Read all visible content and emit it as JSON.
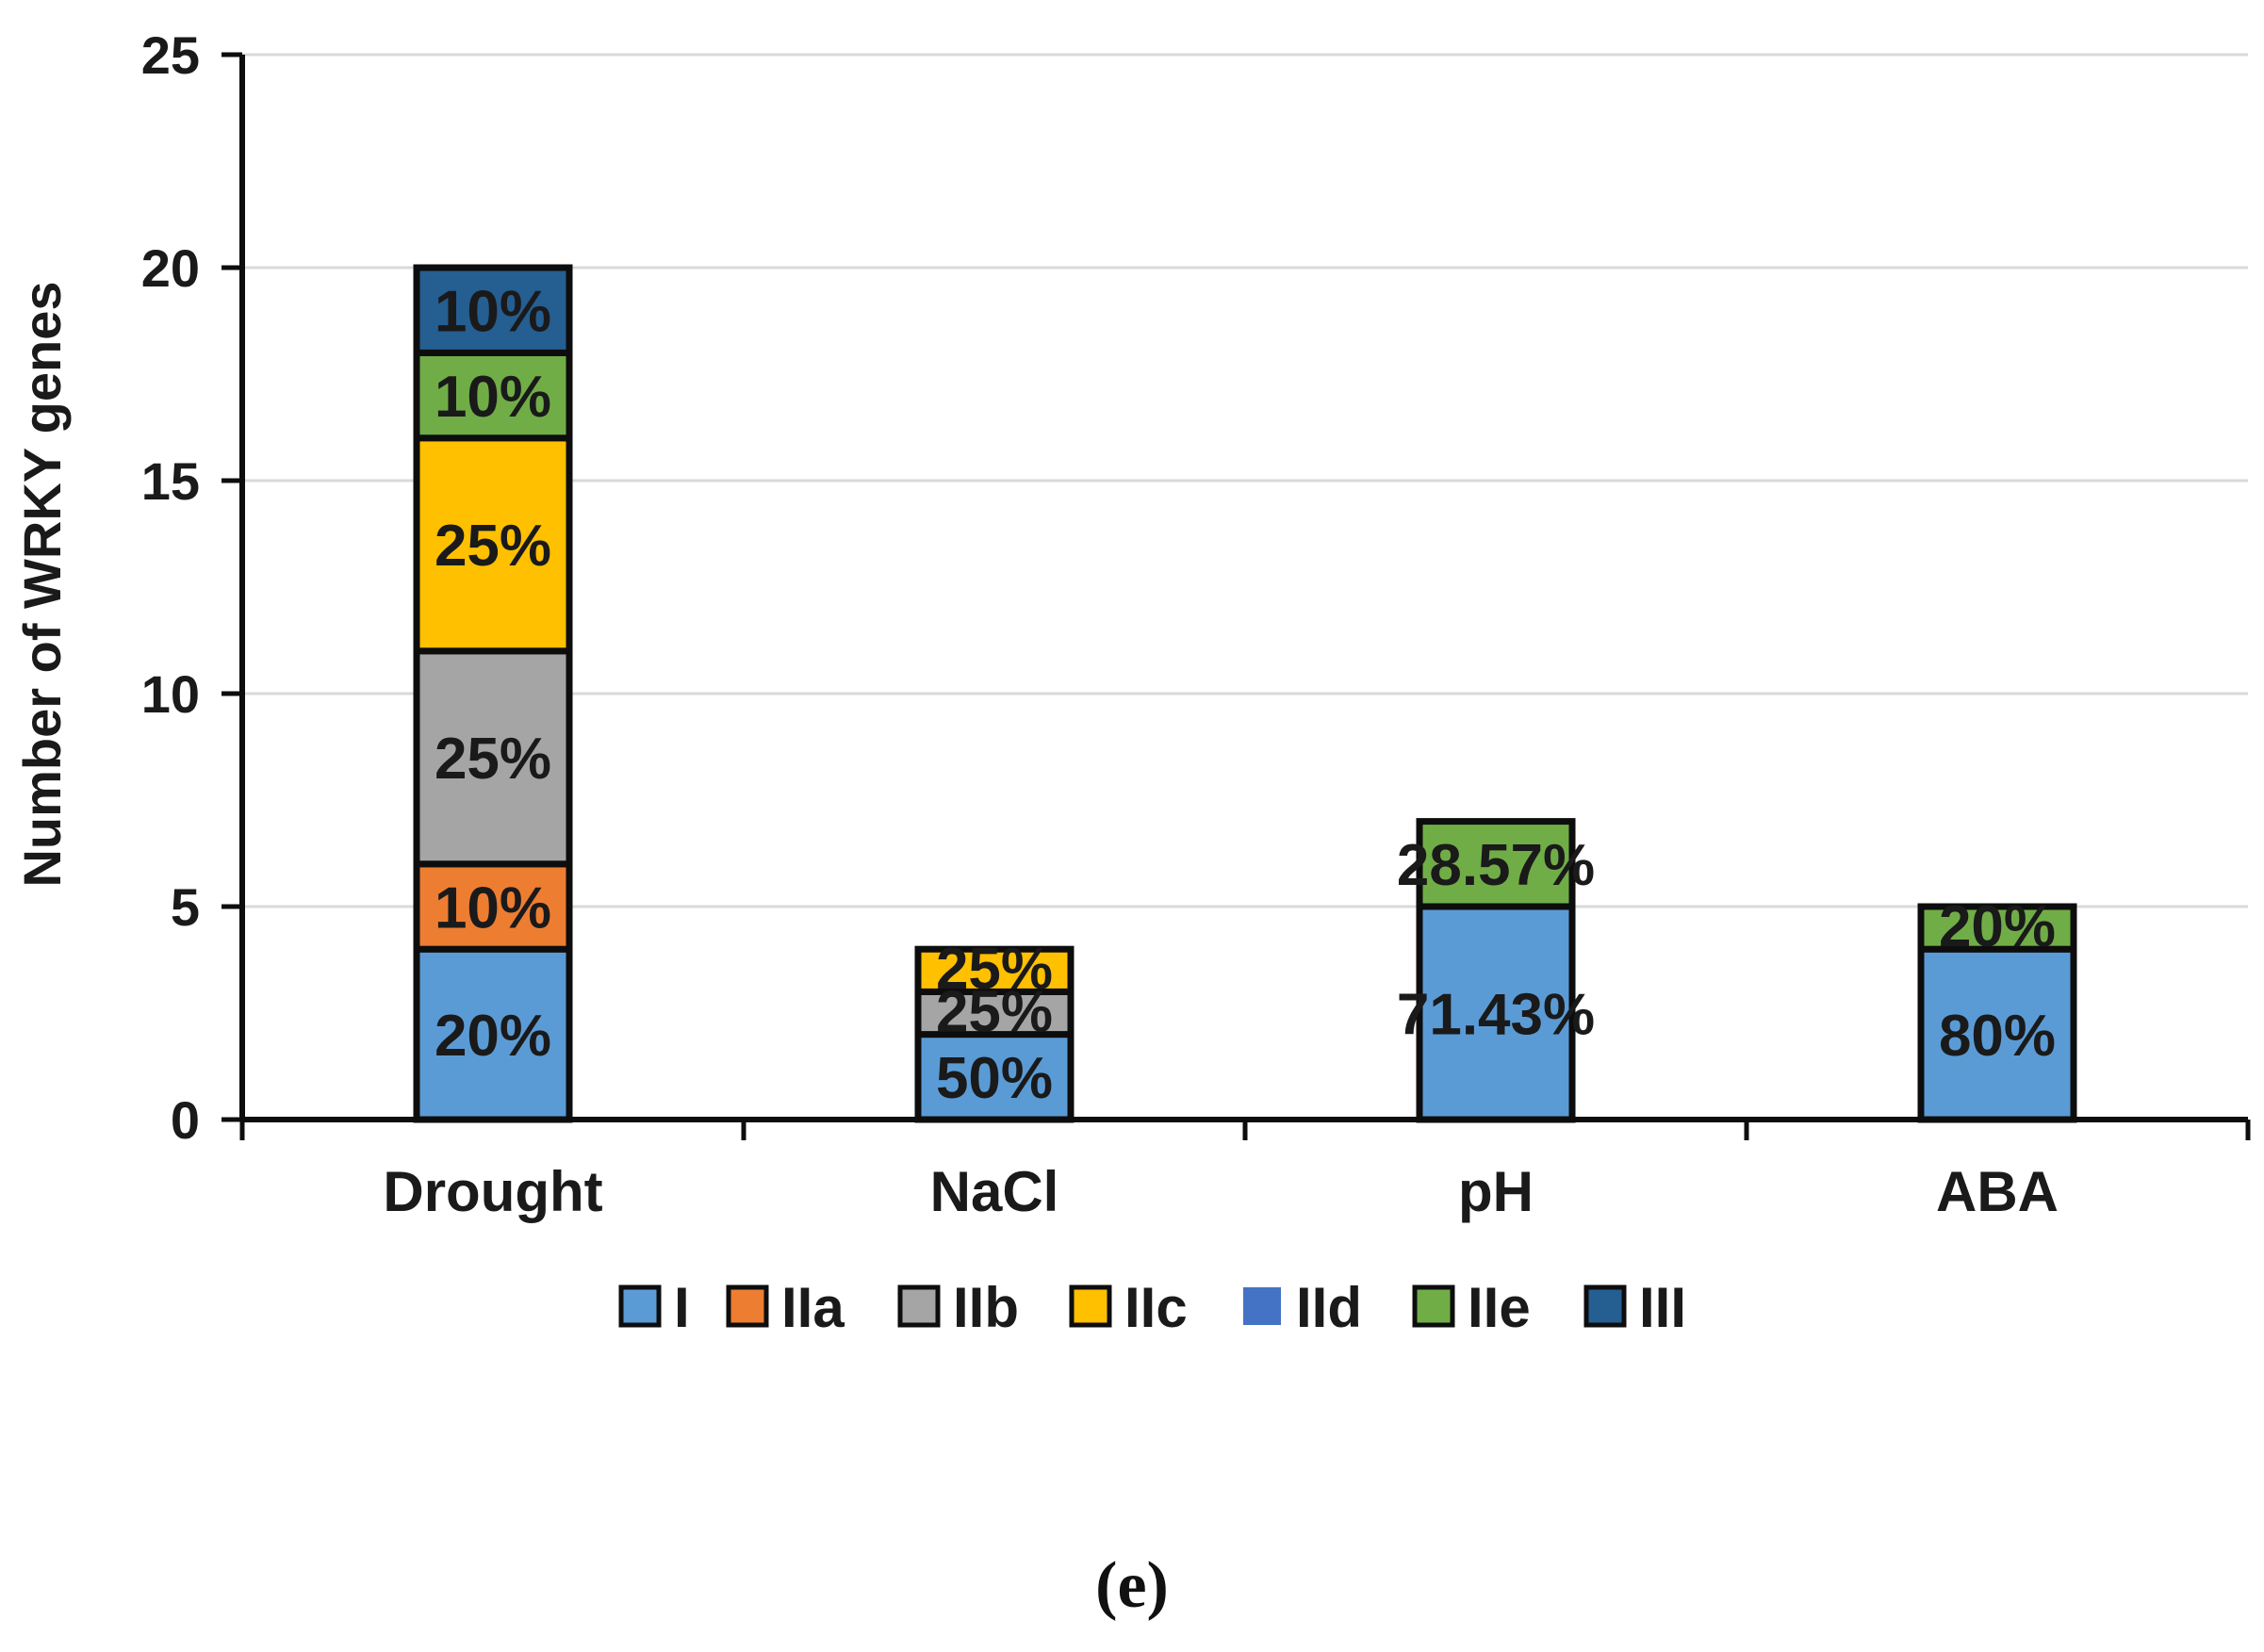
{
  "chart_data": {
    "type": "bar",
    "stacked": true,
    "categories": [
      "Drought",
      "NaCl",
      "pH",
      "ABA"
    ],
    "ylabel": "Number of WRKY genes",
    "xlabel": "",
    "ylim": [
      0,
      25
    ],
    "yticks": [
      0,
      5,
      10,
      15,
      20,
      25
    ],
    "grid": true,
    "legend_position": "bottom",
    "series": [
      {
        "name": "I",
        "color": "#5b9bd5",
        "values": [
          4,
          2,
          5,
          4
        ],
        "labels": [
          "20%",
          "50%",
          "71.43%",
          "80%"
        ]
      },
      {
        "name": "IIa",
        "color": "#ed7d31",
        "values": [
          2,
          0,
          0,
          0
        ],
        "labels": [
          "10%",
          "",
          "",
          ""
        ]
      },
      {
        "name": "IIb",
        "color": "#a5a5a5",
        "values": [
          5,
          1,
          0,
          0
        ],
        "labels": [
          "25%",
          "25%",
          "",
          ""
        ]
      },
      {
        "name": "IIc",
        "color": "#ffc000",
        "values": [
          5,
          1,
          0,
          0
        ],
        "labels": [
          "25%",
          "25%",
          "",
          ""
        ]
      },
      {
        "name": "IId",
        "color": "#4472c4",
        "values": [
          0,
          0,
          0,
          0
        ],
        "labels": [
          "",
          "",
          "",
          ""
        ]
      },
      {
        "name": "IIe",
        "color": "#70ad47",
        "values": [
          2,
          0,
          2,
          1
        ],
        "labels": [
          "10%",
          "",
          "28.57%",
          "20%"
        ]
      },
      {
        "name": "III",
        "color": "#255e91",
        "values": [
          2,
          0,
          0,
          0
        ],
        "labels": [
          "10%",
          "",
          "",
          ""
        ]
      }
    ]
  },
  "caption": "(e)"
}
